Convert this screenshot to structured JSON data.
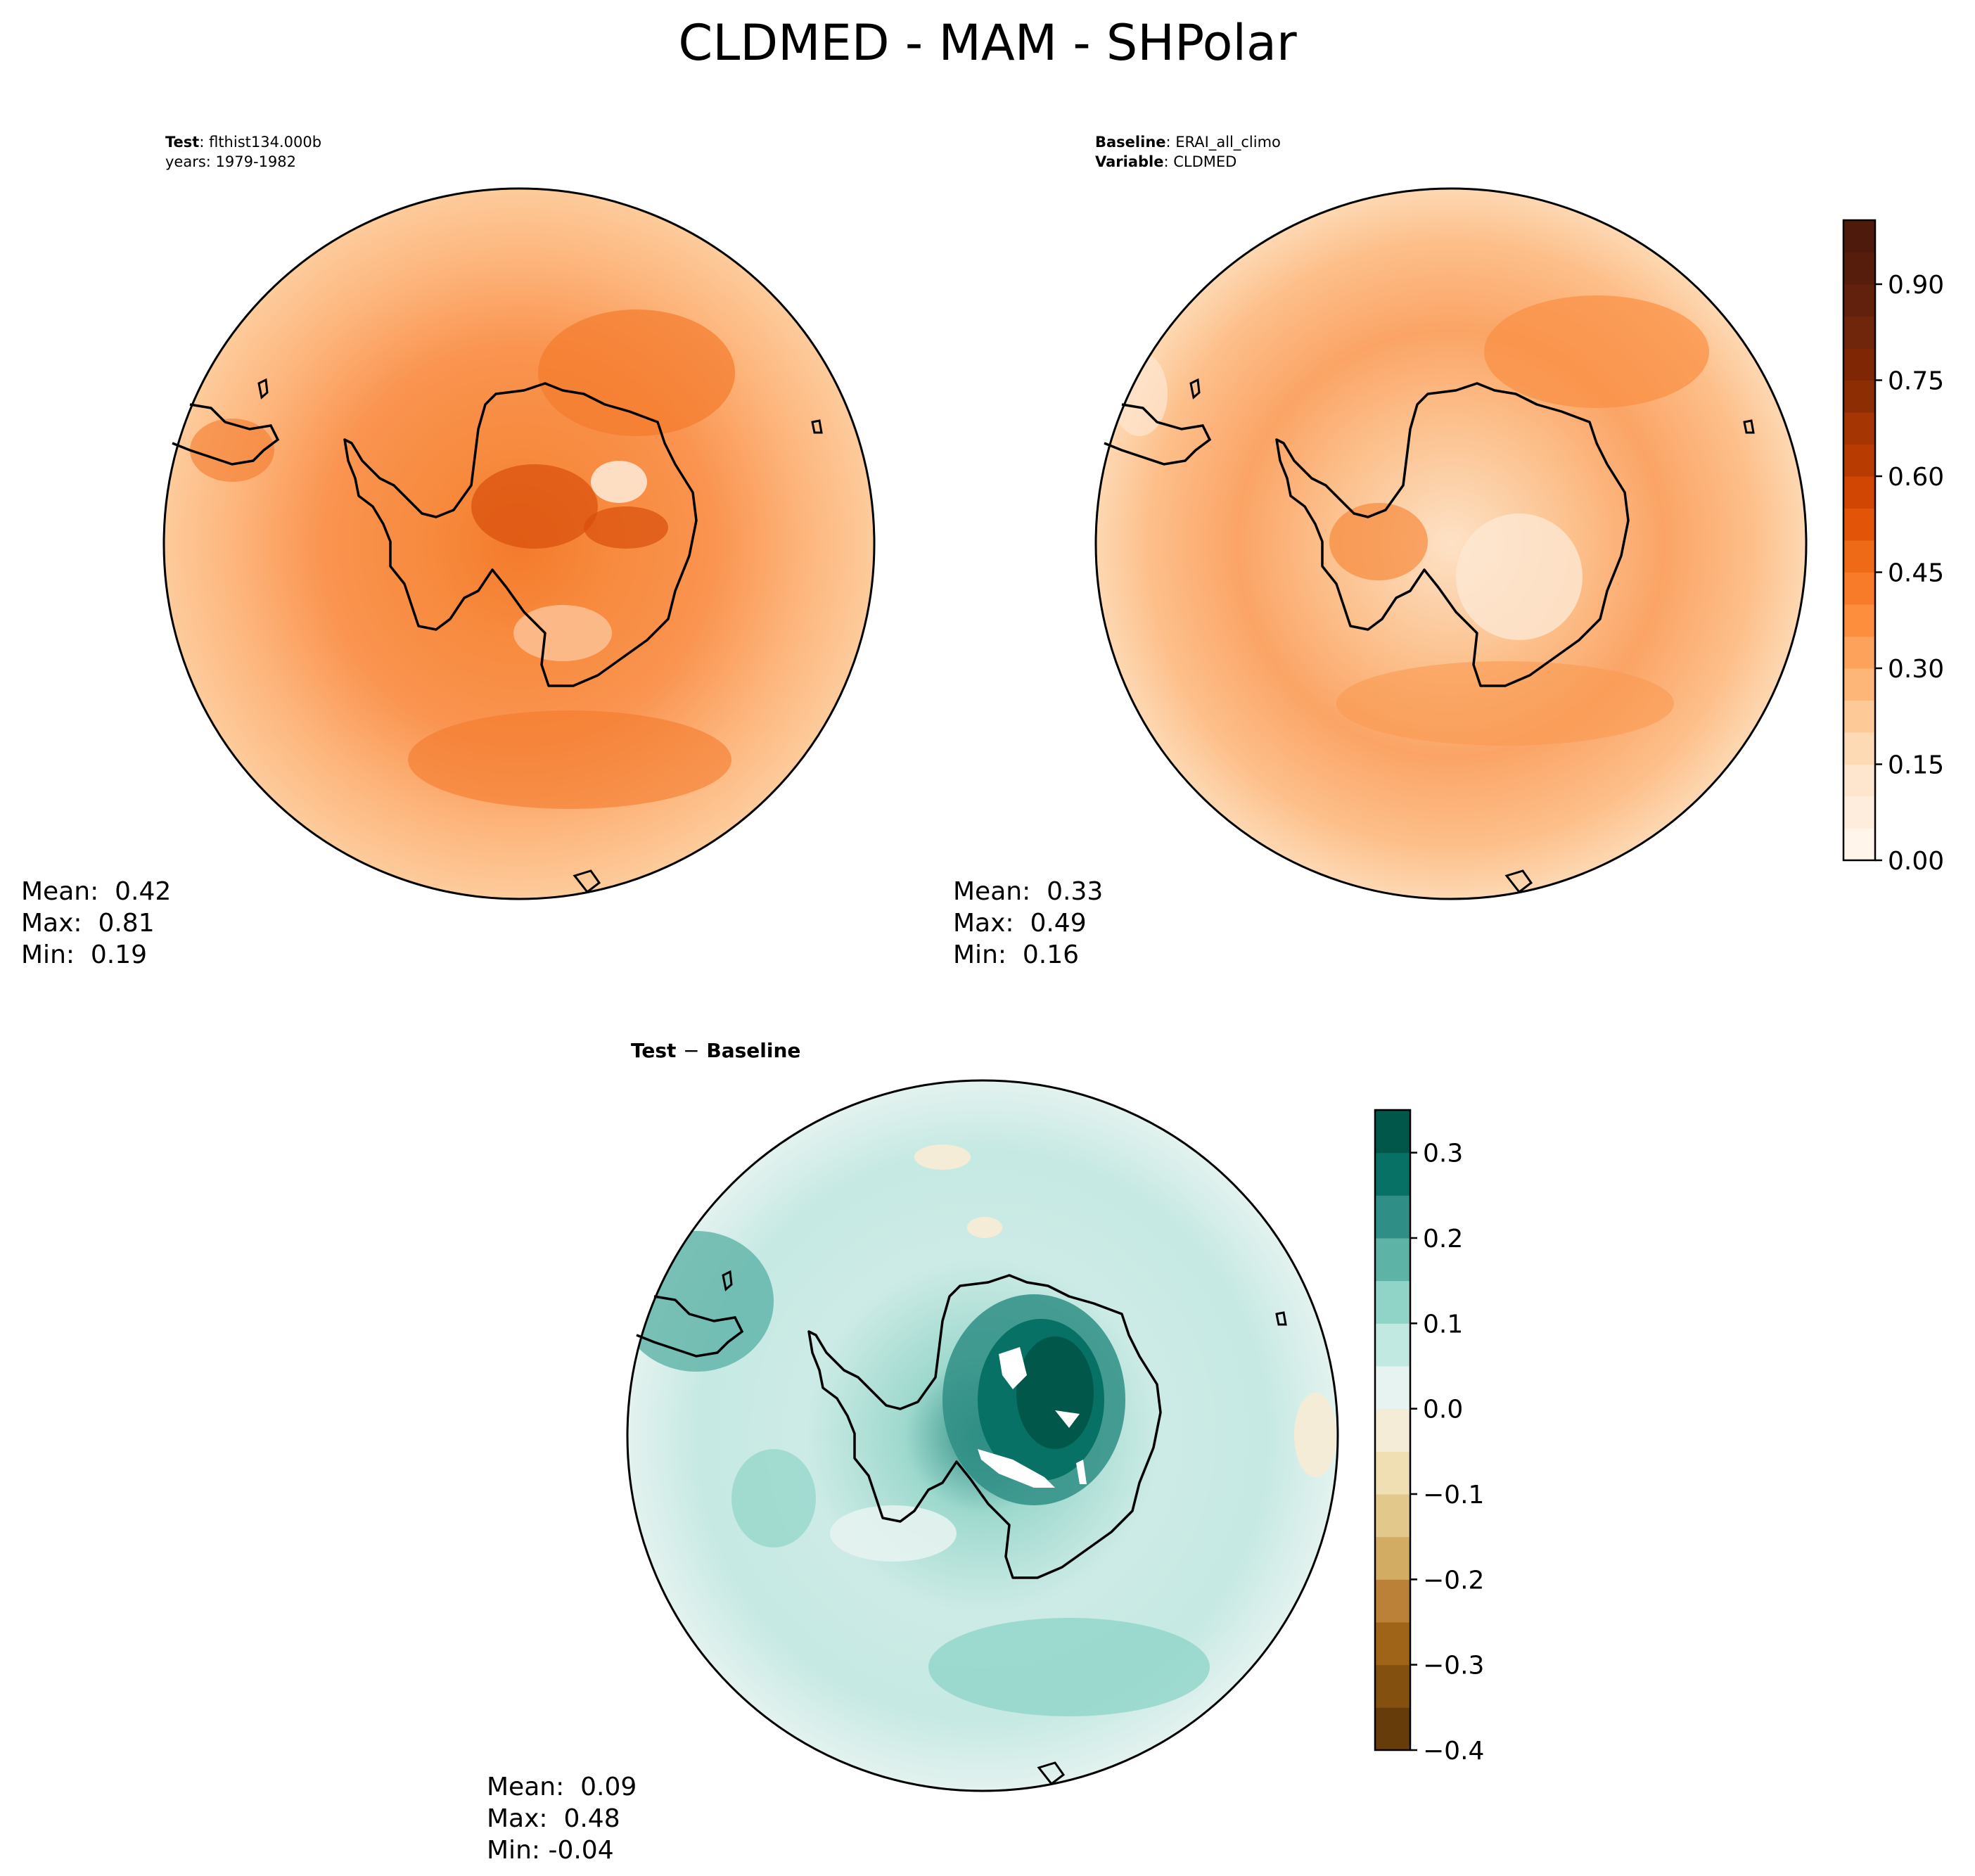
{
  "title": "CLDMED - MAM - SHPolar",
  "panels": {
    "test": {
      "label_key": "Test",
      "label_value": "flthist134.000b",
      "years": "years: 1979-1982",
      "stats": {
        "mean": "Mean:  0.42",
        "max": "Max:  0.81",
        "min": "Min:  0.19"
      }
    },
    "baseline": {
      "label_key": "Baseline",
      "label_value": "ERAI_all_climo",
      "variable_key": "Variable",
      "variable_value": "CLDMED",
      "stats": {
        "mean": "Mean:  0.33",
        "max": "Max:  0.49",
        "min": "Min:  0.16"
      }
    },
    "diff": {
      "title_left": "Test",
      "title_sep": "−",
      "title_right": "Baseline",
      "stats": {
        "mean": "Mean:  0.09",
        "max": "Max:  0.48",
        "min": "Min: -0.04"
      }
    }
  },
  "chart_data": [
    {
      "type": "heatmap",
      "panel": "test",
      "projection": "south polar stereographic",
      "region": "SHPolar",
      "variable": "CLDMED",
      "season": "MAM",
      "mean": 0.42,
      "max": 0.81,
      "min": 0.19
    },
    {
      "type": "heatmap",
      "panel": "baseline",
      "projection": "south polar stereographic",
      "mean": 0.33,
      "max": 0.49,
      "min": 0.16,
      "colorbar": {
        "range": [
          0.0,
          1.0
        ],
        "levels": [
          0.0,
          0.05,
          0.1,
          0.15,
          0.2,
          0.25,
          0.3,
          0.35,
          0.4,
          0.45,
          0.5,
          0.55,
          0.6,
          0.65,
          0.7,
          0.75,
          0.8,
          0.85,
          0.9,
          0.95,
          1.0
        ],
        "ticks": [
          "0.00",
          "0.15",
          "0.30",
          "0.45",
          "0.60",
          "0.75",
          "0.90"
        ],
        "tick_values": [
          0.0,
          0.15,
          0.3,
          0.45,
          0.6,
          0.75,
          0.9
        ],
        "colormap": "Oranges",
        "colors": [
          "#fff5eb",
          "#feeddc",
          "#fee6ce",
          "#fdd9b4",
          "#fdc997",
          "#fdb678",
          "#fda25a",
          "#fd8e3d",
          "#f77b28",
          "#ee6a16",
          "#e25508",
          "#d14602",
          "#b83c02",
          "#a53603",
          "#8c2d04",
          "#7f2704",
          "#70260a",
          "#62210c",
          "#561d0c",
          "#4d1a0b"
        ]
      }
    },
    {
      "type": "heatmap",
      "panel": "diff",
      "projection": "south polar stereographic",
      "mean": 0.09,
      "max": 0.48,
      "min": -0.04,
      "colorbar": {
        "range": [
          -0.4,
          0.35
        ],
        "levels": [
          -0.4,
          -0.35,
          -0.3,
          -0.25,
          -0.2,
          -0.15,
          -0.1,
          -0.05,
          0.0,
          0.05,
          0.1,
          0.15,
          0.2,
          0.25,
          0.3,
          0.35
        ],
        "ticks": [
          "−0.4",
          "−0.3",
          "−0.2",
          "−0.1",
          "0.0",
          "0.1",
          "0.2",
          "0.3"
        ],
        "tick_values": [
          -0.4,
          -0.3,
          -0.2,
          -0.1,
          0.0,
          0.1,
          0.2,
          0.3
        ],
        "colormap": "BrBG",
        "colors": [
          "#673c0b",
          "#84500f",
          "#a06418",
          "#bc8139",
          "#d2ac62",
          "#e3c88c",
          "#f0dfb2",
          "#f5ecd7",
          "#e6f3f0",
          "#c2e8e2",
          "#90d4c8",
          "#5eb3a7",
          "#2f8e85",
          "#087166",
          "#00574a"
        ]
      }
    }
  ]
}
